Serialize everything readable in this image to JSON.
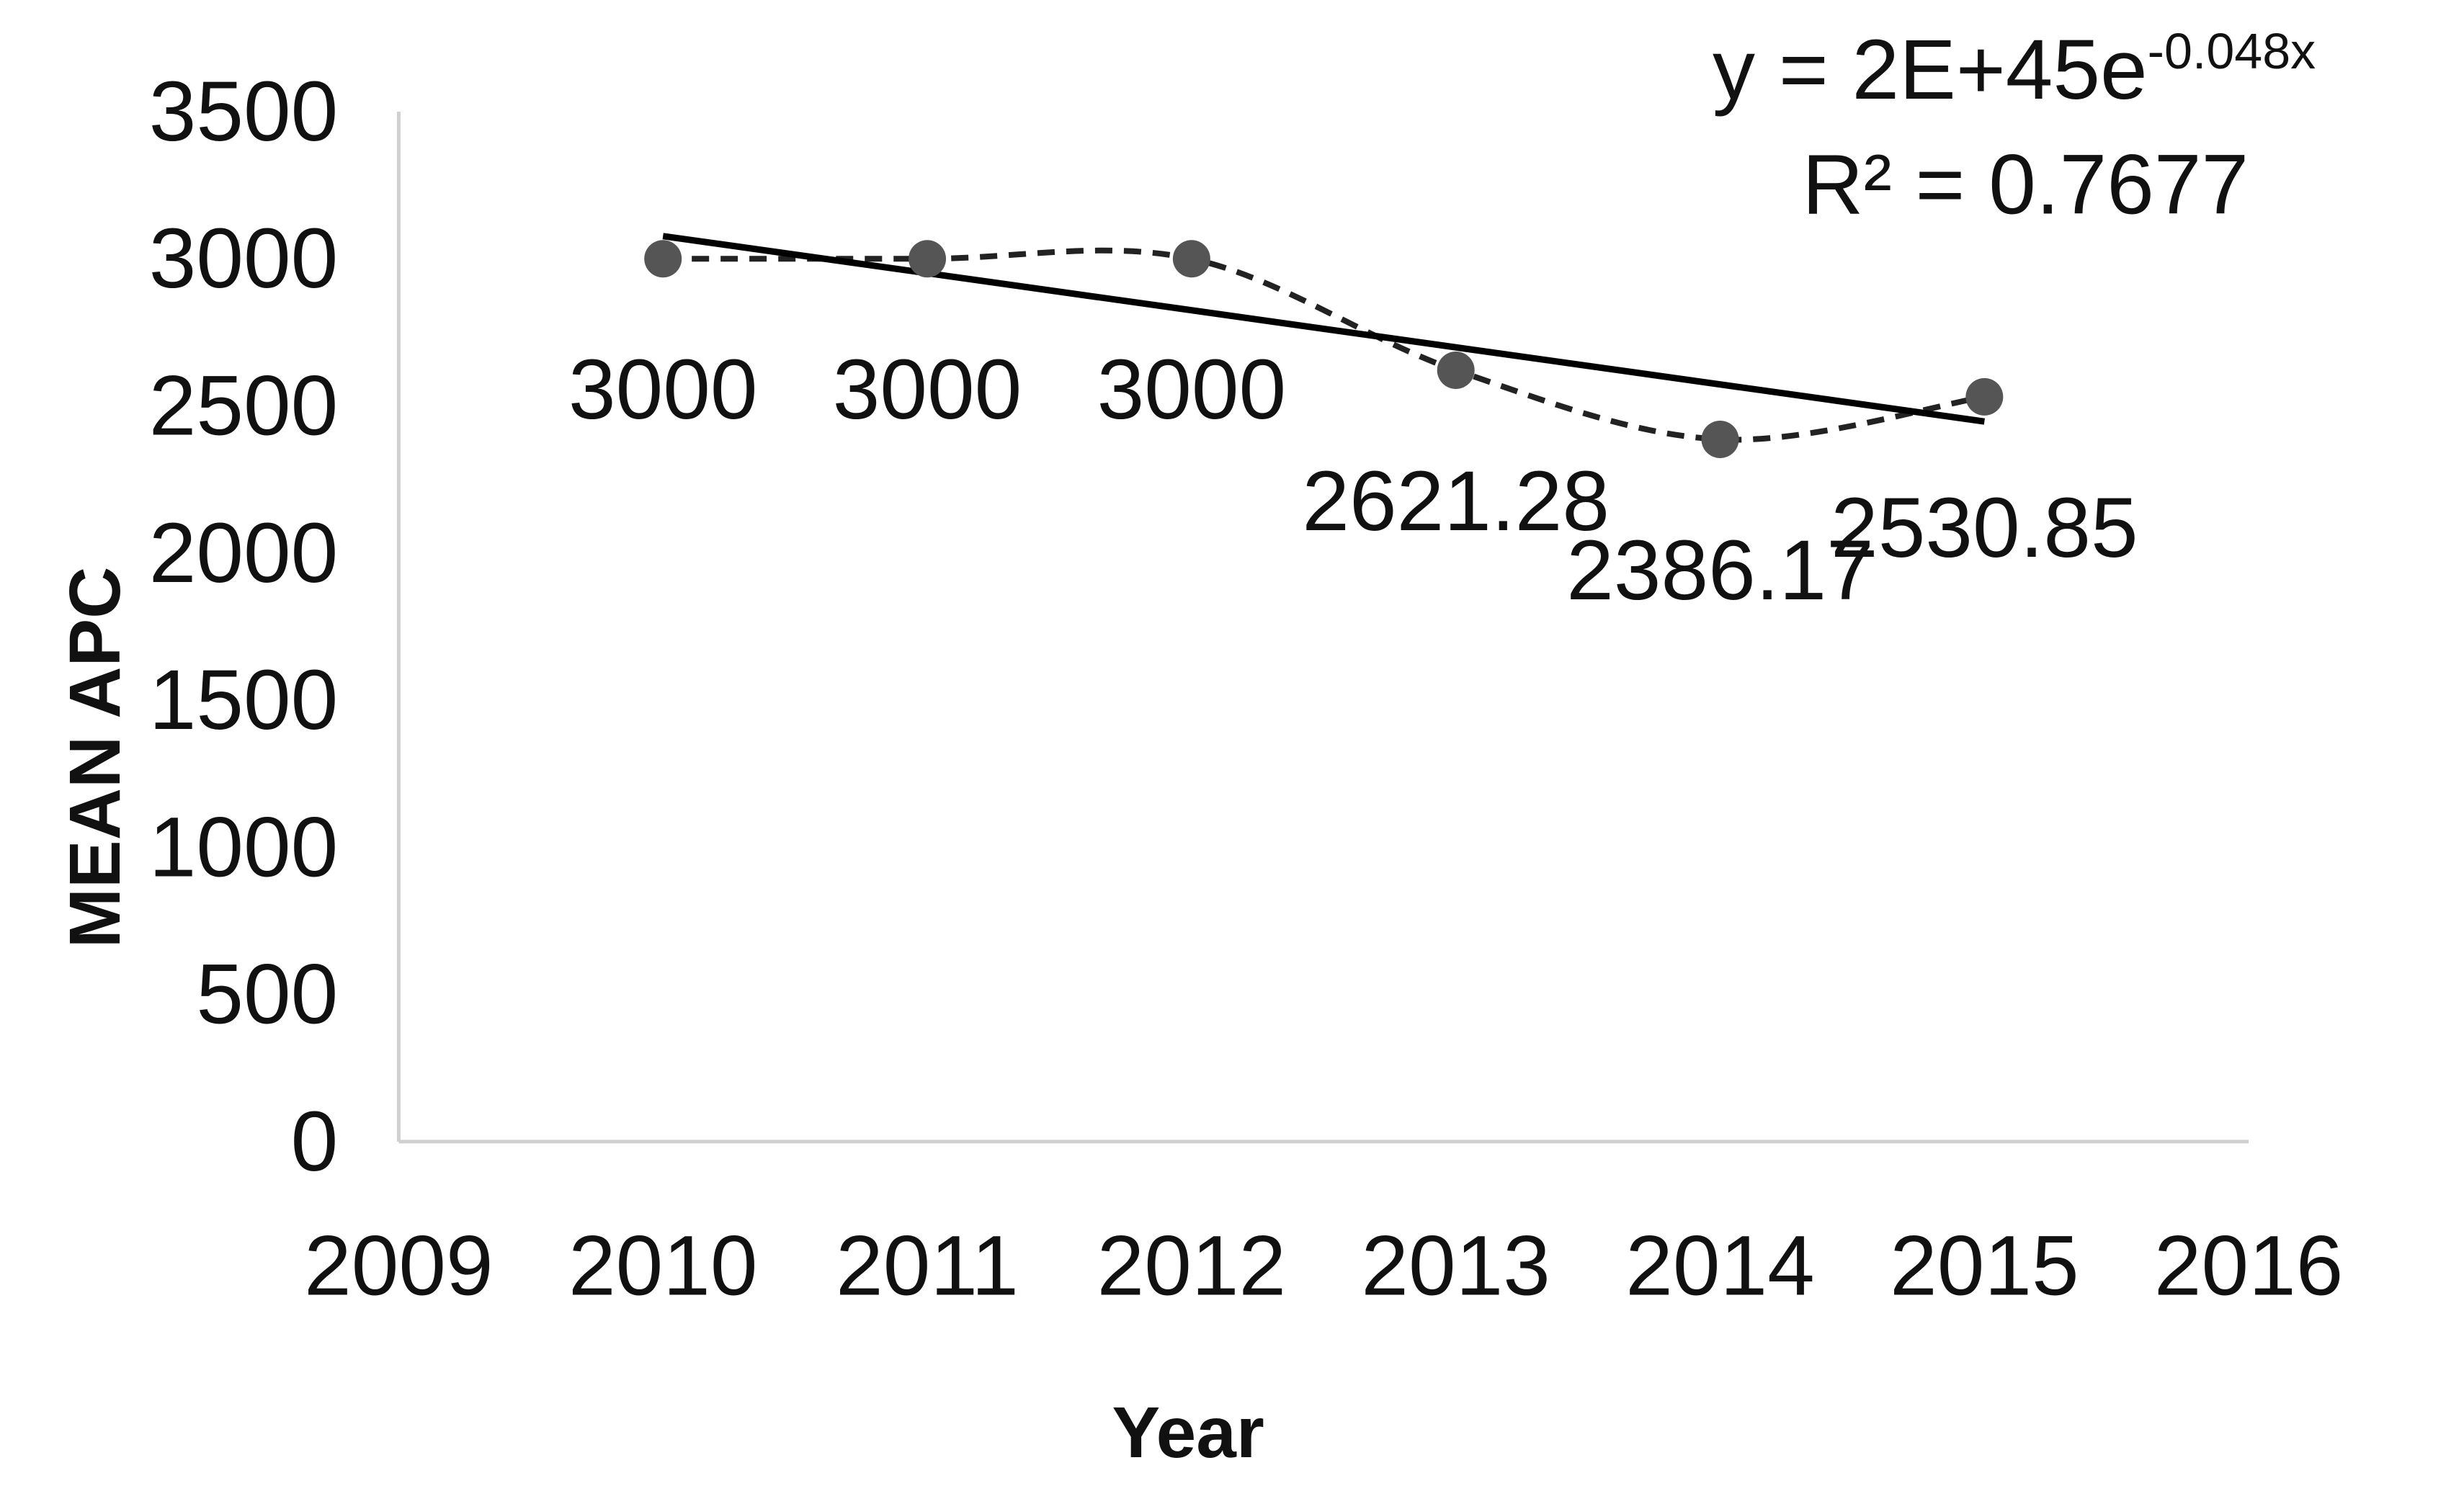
{
  "chart_data": {
    "type": "scatter",
    "title": "",
    "xlabel": "Year",
    "ylabel": "MEAN APC",
    "xlim": [
      2009,
      2016
    ],
    "ylim": [
      0,
      3500
    ],
    "x_ticks": [
      "2009",
      "2010",
      "2011",
      "2012",
      "2013",
      "2014",
      "2015",
      "2016"
    ],
    "y_ticks": [
      "0",
      "500",
      "1000",
      "1500",
      "2000",
      "2500",
      "3000",
      "3500"
    ],
    "grid": false,
    "legend": "none",
    "series": [
      {
        "x": [
          2010,
          2011,
          2012,
          2013,
          2014,
          2015
        ],
        "y": [
          3000,
          3000,
          3000,
          2621.28,
          2386.17,
          2530.85
        ],
        "labels": [
          "3000",
          "3000",
          "3000",
          "2621.28",
          "2386.17",
          "2530.85"
        ],
        "marker_color": "#555555",
        "line_style": "dashed smooth"
      }
    ],
    "trendline": {
      "type": "exponential",
      "equation_prefix": "y = 2E+45e",
      "equation_exponent": "-0.048x",
      "r_squared": "R² = 0.7677",
      "y_at_xmin": 3077,
      "y_at_xmax": 2447,
      "x_range": [
        2010,
        2015
      ],
      "color": "#000000"
    }
  }
}
